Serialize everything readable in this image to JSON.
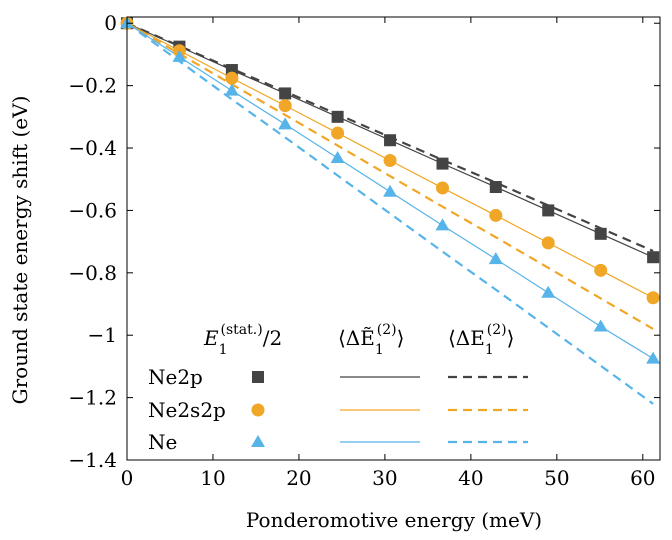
{
  "chart_data": {
    "type": "line",
    "xlabel": "Ponderomotive energy (meV)",
    "ylabel": "Ground state energy shift (eV)",
    "xlim": [
      0,
      62
    ],
    "ylim": [
      -1.4,
      0.02
    ],
    "xticks": [
      0,
      10,
      20,
      30,
      40,
      50,
      60
    ],
    "yticks": [
      0,
      -0.2,
      -0.4,
      -0.6,
      -0.8,
      -1,
      -1.2,
      -1.4
    ],
    "xtick_labels": [
      "0",
      "10",
      "20",
      "30",
      "40",
      "50",
      "60"
    ],
    "ytick_labels": [
      "0",
      "−0.2",
      "−0.4",
      "−0.6",
      "−0.8",
      "−1",
      "−1.2",
      "−1.4"
    ],
    "grid": false,
    "legend": {
      "placement": "bottom-left",
      "column_headers": [
        "E₁^(stat.)/2",
        "⟨ΔẼ₁^(2)⟩",
        "⟨ΔE₁^(2)⟩"
      ],
      "header_parts": {
        "h1_main": "E",
        "h1_sub": "1",
        "h1_sup": "(stat.)",
        "h1_tail": "/2",
        "h2_main": "⟨ΔẼ",
        "h2_sub": "1",
        "h2_sup": "(2)",
        "h2_tail": "⟩",
        "h3_main": "⟨ΔE",
        "h3_sub": "1",
        "h3_sup": "(2)",
        "h3_tail": "⟩"
      },
      "rows": [
        "Ne2p",
        "Ne2s2p",
        "Ne"
      ]
    },
    "series": [
      {
        "name": "Ne2p",
        "color": "#444444",
        "marker": "square",
        "x": [
          0,
          6.1,
          12.2,
          18.4,
          24.5,
          30.6,
          36.7,
          42.9,
          49.0,
          55.1,
          61.2
        ],
        "stat_half": [
          0,
          -0.075,
          -0.15,
          -0.225,
          -0.3,
          -0.375,
          -0.45,
          -0.525,
          -0.6,
          -0.675,
          -0.75
        ],
        "solid": [
          0,
          -0.075,
          -0.15,
          -0.225,
          -0.3,
          -0.375,
          -0.45,
          -0.525,
          -0.6,
          -0.675,
          -0.75
        ],
        "dashed": [
          0,
          -0.073,
          -0.146,
          -0.219,
          -0.292,
          -0.365,
          -0.438,
          -0.511,
          -0.584,
          -0.657,
          -0.73
        ]
      },
      {
        "name": "Ne2s2p",
        "color": "#f0a626",
        "marker": "circle",
        "x": [
          0,
          6.1,
          12.2,
          18.4,
          24.5,
          30.6,
          36.7,
          42.9,
          49.0,
          55.1,
          61.2
        ],
        "stat_half": [
          0,
          -0.088,
          -0.176,
          -0.264,
          -0.352,
          -0.44,
          -0.528,
          -0.616,
          -0.704,
          -0.792,
          -0.88
        ],
        "solid": [
          0,
          -0.088,
          -0.176,
          -0.264,
          -0.352,
          -0.44,
          -0.528,
          -0.616,
          -0.704,
          -0.792,
          -0.88
        ],
        "dashed": [
          0,
          -0.098,
          -0.196,
          -0.294,
          -0.392,
          -0.49,
          -0.588,
          -0.686,
          -0.784,
          -0.882,
          -0.98
        ]
      },
      {
        "name": "Ne",
        "color": "#56b4e9",
        "marker": "triangle",
        "x": [
          0,
          6.1,
          12.2,
          18.4,
          24.5,
          30.6,
          36.7,
          42.9,
          49.0,
          55.1,
          61.2
        ],
        "stat_half": [
          0,
          -0.108,
          -0.216,
          -0.324,
          -0.432,
          -0.54,
          -0.648,
          -0.756,
          -0.864,
          -0.972,
          -1.075
        ],
        "solid": [
          0,
          -0.108,
          -0.216,
          -0.324,
          -0.432,
          -0.54,
          -0.648,
          -0.756,
          -0.864,
          -0.972,
          -1.075
        ],
        "dashed": [
          0,
          -0.122,
          -0.244,
          -0.366,
          -0.488,
          -0.61,
          -0.732,
          -0.854,
          -0.976,
          -1.098,
          -1.22
        ]
      }
    ]
  }
}
